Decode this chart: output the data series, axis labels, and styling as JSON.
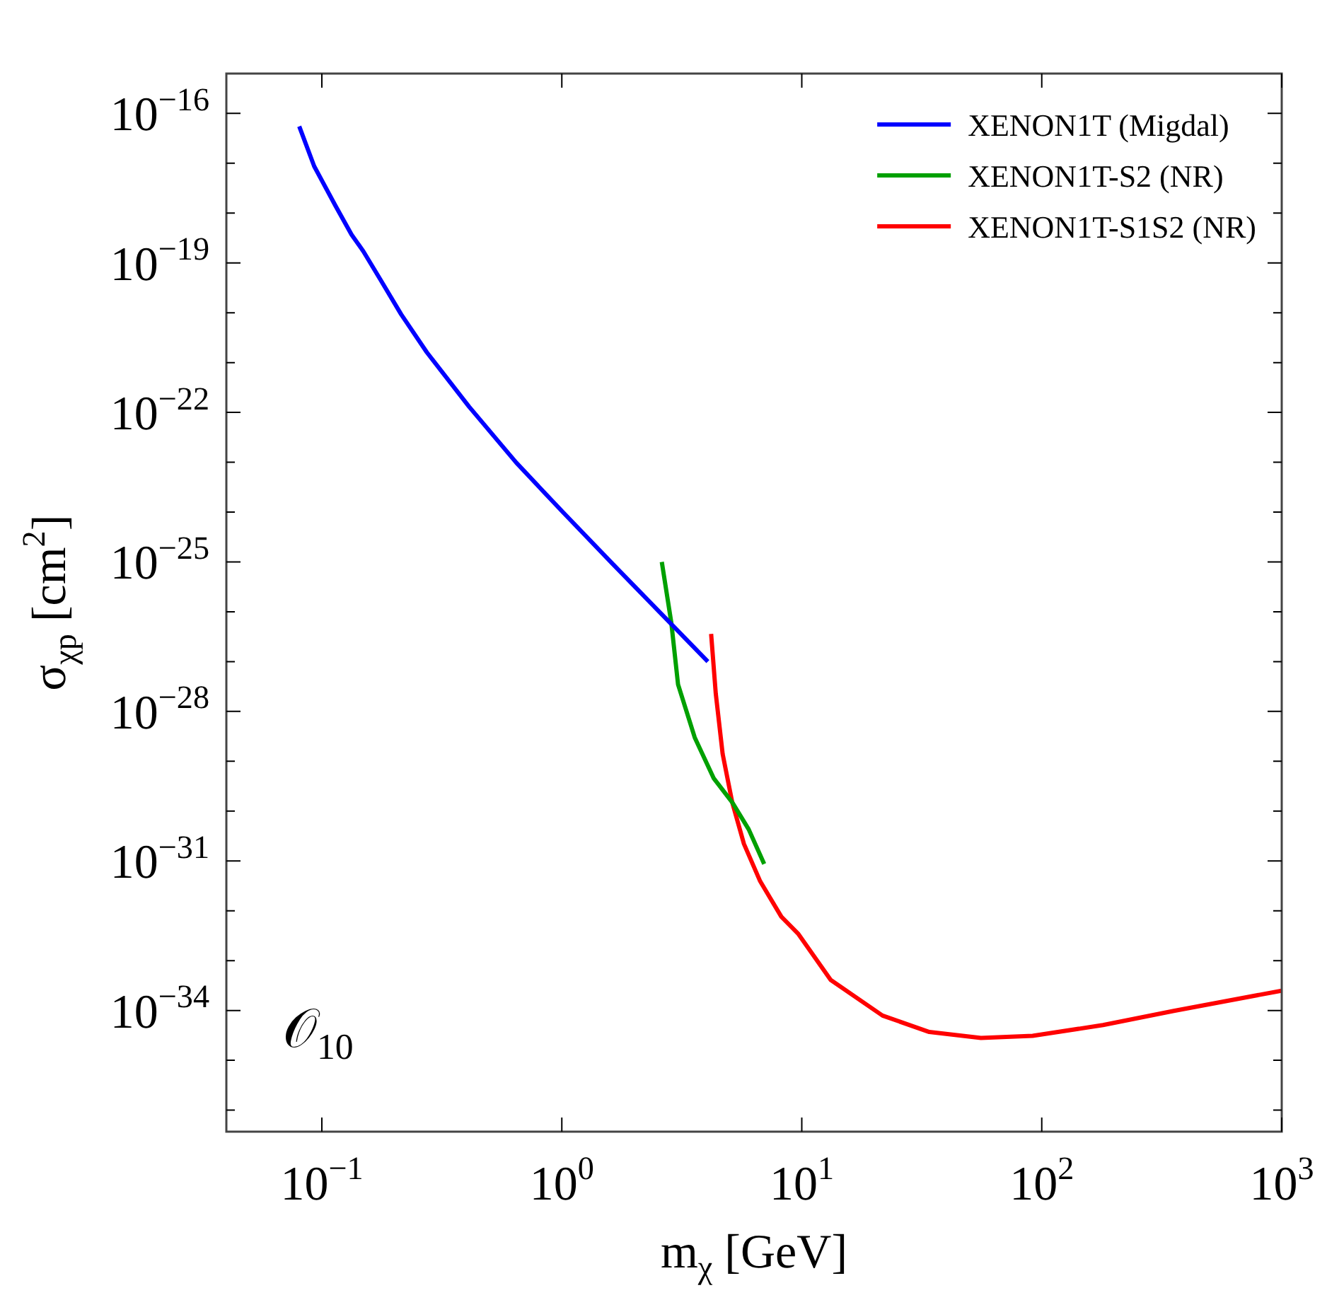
{
  "chart_data": {
    "type": "line",
    "xlabel": "m$_{χ}$ [GeV]",
    "ylabel": "σ$_{χp}$ [cm$^{2}$]",
    "annotations": [
      "𝒪$_{10}$"
    ],
    "log": "xy",
    "xlim": [
      0.04,
      1000
    ],
    "ylim": [
      3.7e-37,
      6.3e-16
    ],
    "xticks": [
      {
        "value": 0.1,
        "label": "10$^{−1}$"
      },
      {
        "value": 1,
        "label": "10$^{0}$"
      },
      {
        "value": 10,
        "label": "10$^{1}$"
      },
      {
        "value": 100,
        "label": "10$^{2}$"
      },
      {
        "value": 1000,
        "label": "10$^{3}$"
      }
    ],
    "yticks": [
      {
        "value": 1e-16,
        "label": "10$^{−16}$"
      },
      {
        "value": 1e-17,
        "label": null
      },
      {
        "value": 1e-18,
        "label": null
      },
      {
        "value": 1e-19,
        "label": "10$^{−19}$"
      },
      {
        "value": 1e-20,
        "label": null
      },
      {
        "value": 1e-21,
        "label": null
      },
      {
        "value": 1e-22,
        "label": "10$^{−22}$"
      },
      {
        "value": 1e-23,
        "label": null
      },
      {
        "value": 1e-24,
        "label": null
      },
      {
        "value": 1e-25,
        "label": "10$^{−25}$"
      },
      {
        "value": 1e-26,
        "label": null
      },
      {
        "value": 1e-27,
        "label": null
      },
      {
        "value": 1e-28,
        "label": "10$^{−28}$"
      },
      {
        "value": 1e-29,
        "label": null
      },
      {
        "value": 1e-30,
        "label": null
      },
      {
        "value": 1e-31,
        "label": "10$^{−31}$"
      },
      {
        "value": 1e-32,
        "label": null
      },
      {
        "value": 1e-33,
        "label": null
      },
      {
        "value": 1e-34,
        "label": "10$^{−34}$"
      },
      {
        "value": 1e-35,
        "label": null
      },
      {
        "value": 1e-36,
        "label": null
      }
    ],
    "legend": "top right",
    "grid": false,
    "marker": "none",
    "line_style": "solid",
    "series": [
      {
        "name": "XENON1T (Migdal)",
        "color": "#0000ff",
        "x": [
          0.0805,
          0.0929,
          0.114,
          0.133,
          0.149,
          0.175,
          0.214,
          0.274,
          0.411,
          0.646,
          1.01,
          1.63,
          4.06
        ],
        "values": [
          5.5e-17,
          8.7e-18,
          1.4e-18,
          3.7e-19,
          1.7e-19,
          4.7e-20,
          9.3e-21,
          1.6e-21,
          1.3e-22,
          9.8e-24,
          1e-24,
          9.1e-26,
          1e-27
        ]
      },
      {
        "name": "XENON1T-S2 (NR)",
        "color": "#00a000",
        "x": [
          2.61,
          2.86,
          3.05,
          3.58,
          4.29,
          5.13,
          6.01,
          6.97
        ],
        "values": [
          1e-25,
          6e-27,
          3.5e-28,
          3e-29,
          4.6e-30,
          1.5e-30,
          4.3e-31,
          8.7e-32
        ]
      },
      {
        "name": "XENON1T-S1S2 (NR)",
        "color": "#ff0000",
        "x": [
          4.19,
          4.38,
          4.68,
          5.13,
          5.74,
          6.71,
          8.22,
          9.64,
          13.2,
          21.7,
          34.0,
          55.8,
          91.6,
          180,
          355,
          1000
        ],
        "values": [
          3.6e-27,
          2.3e-28,
          1.4e-29,
          1.5e-30,
          2.2e-31,
          3.9e-32,
          7.6e-33,
          3.5e-33,
          4.1e-34,
          7.9e-35,
          3.7e-35,
          2.8e-35,
          3.1e-35,
          5.1e-35,
          9.8e-35,
          2.5e-34
        ]
      }
    ]
  }
}
